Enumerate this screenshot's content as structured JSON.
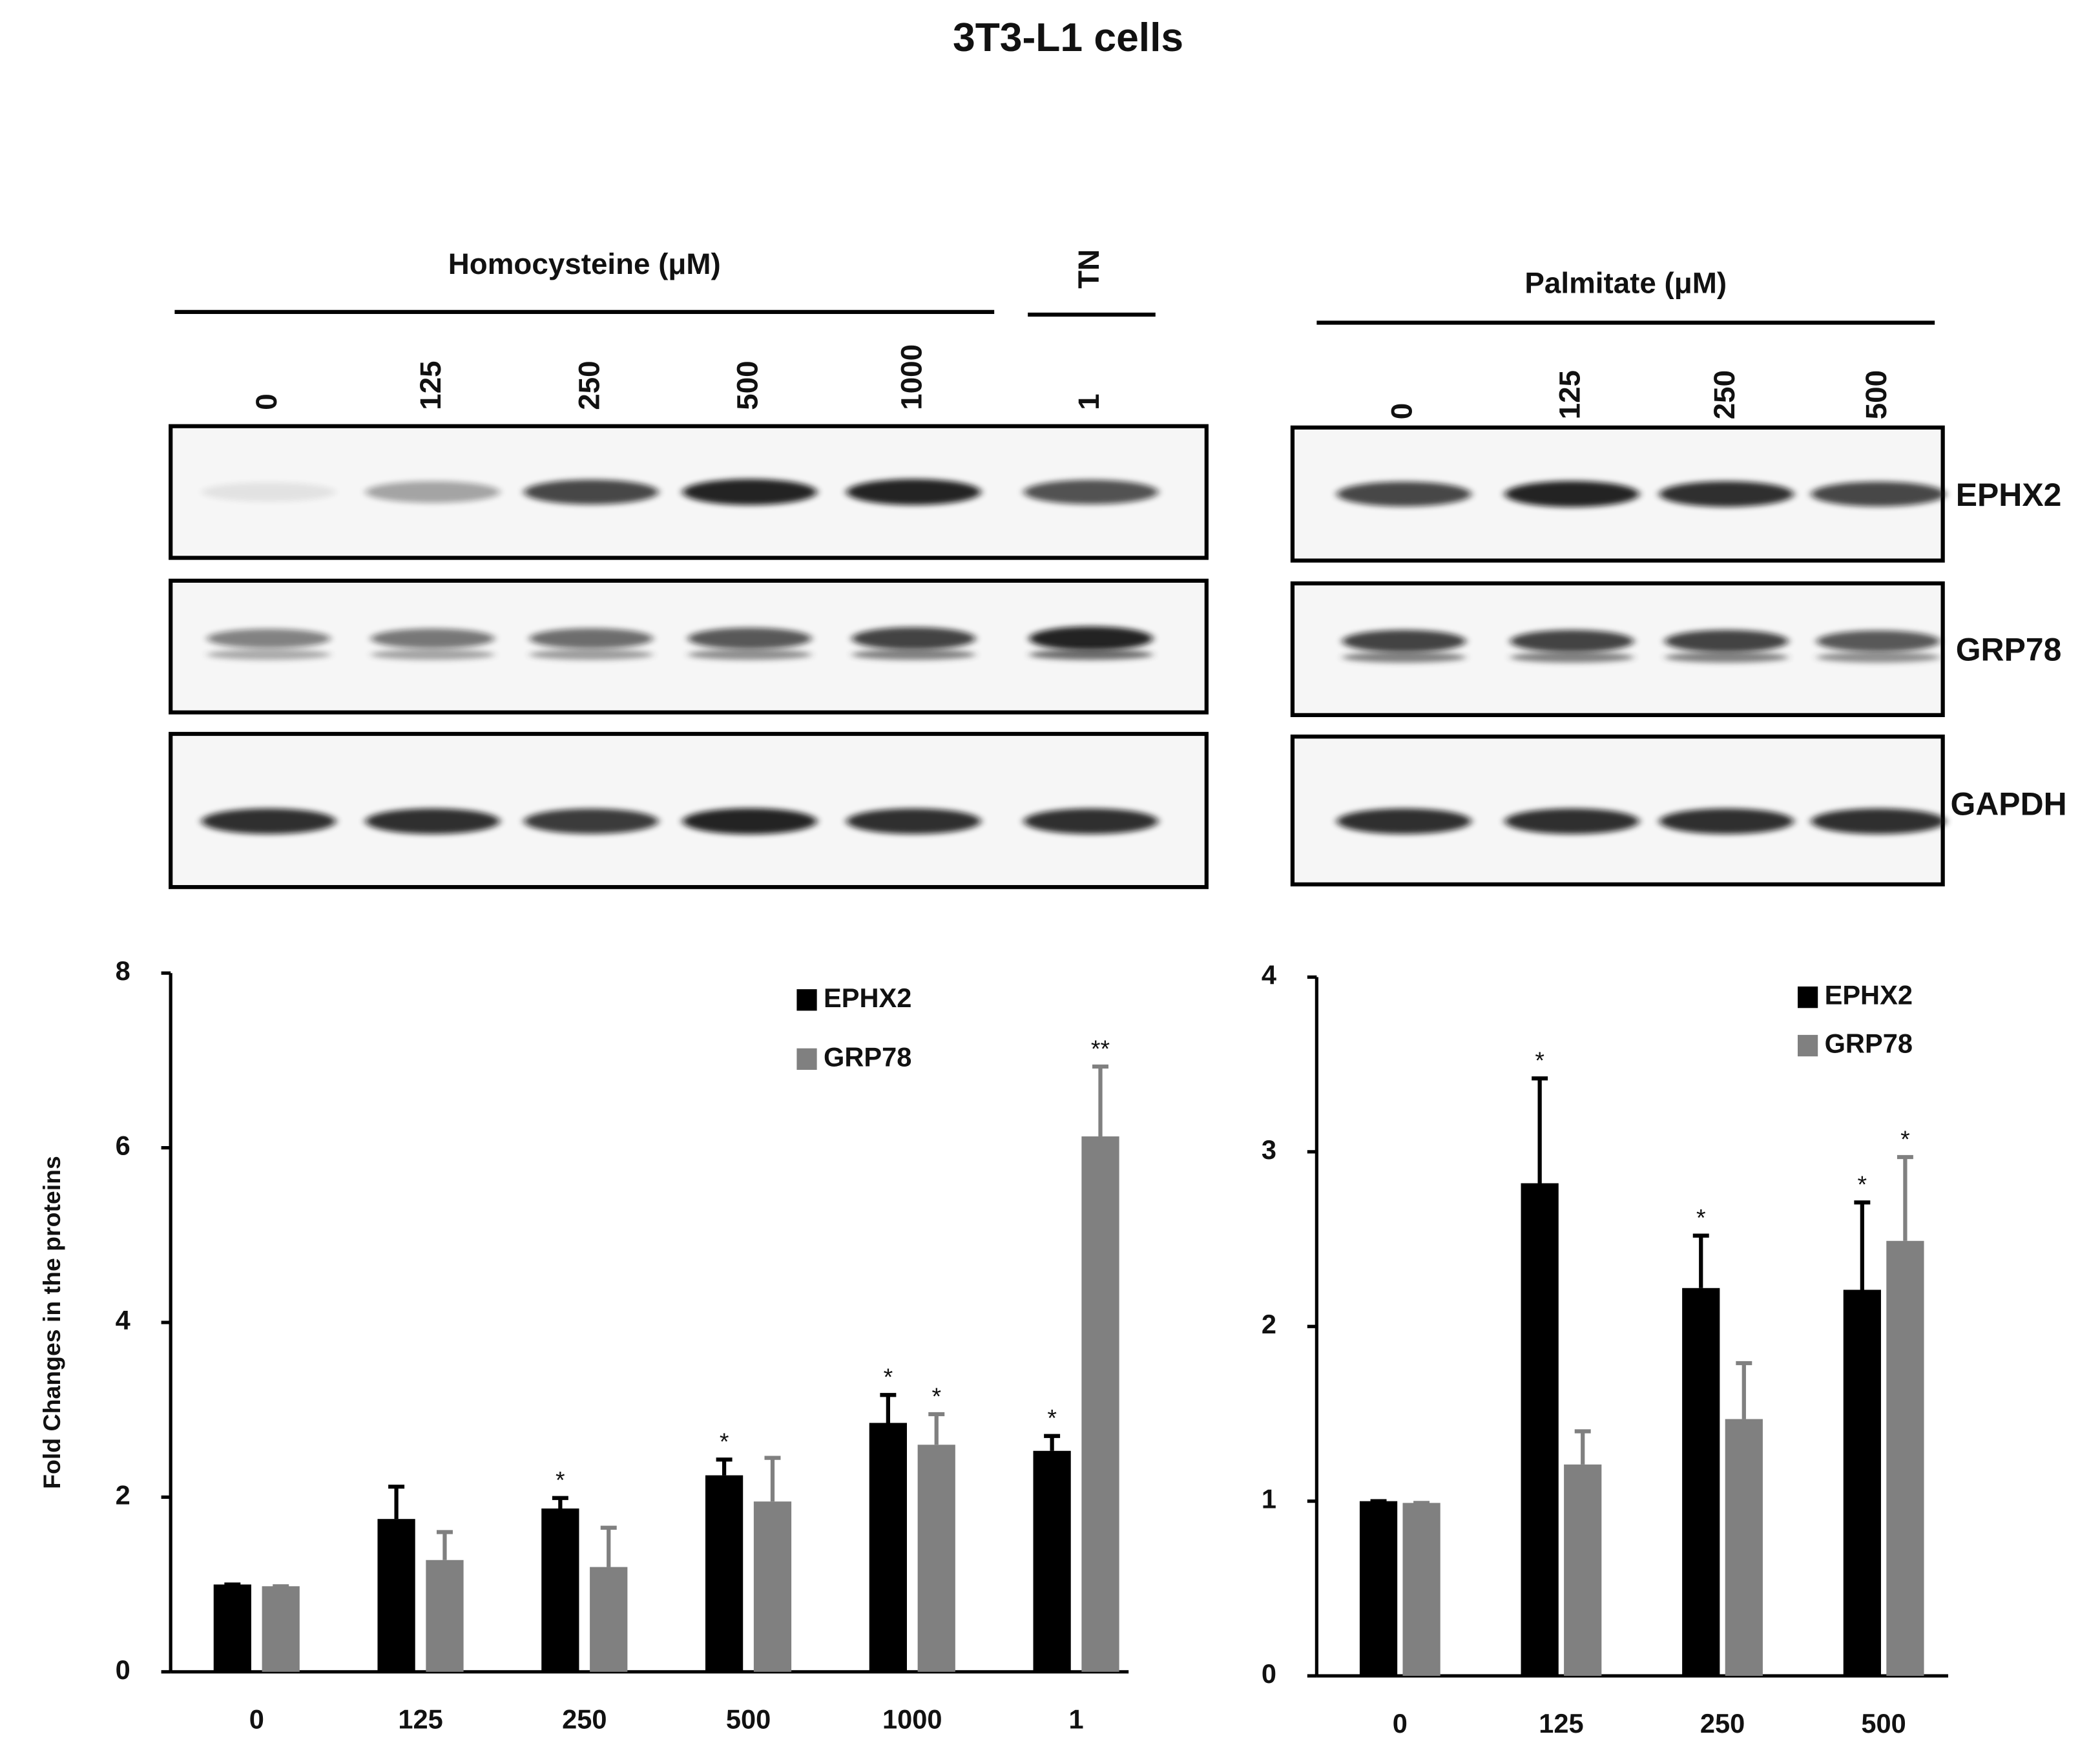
{
  "title": "3T3-L1 cells",
  "blots": [
    {
      "treatment": "Homocysteine (μM)",
      "control": "TN",
      "lanes": [
        "0",
        "125",
        "250",
        "500",
        "1000",
        "1"
      ]
    },
    {
      "treatment": "Palmitate (μM)",
      "lanes": [
        "0",
        "125",
        "250",
        "500"
      ]
    }
  ],
  "proteins": [
    "EPHX2",
    "GRP78",
    "GAPDH"
  ],
  "chart_data": [
    {
      "type": "bar",
      "y_label": "Fold Changes in the proteins",
      "categories": [
        "0",
        "125",
        "250",
        "500",
        "1000",
        "1"
      ],
      "ylim": [
        0,
        8
      ],
      "yticks": [
        0,
        2,
        4,
        6,
        8
      ],
      "legend": "top-right",
      "series": [
        {
          "name": "EPHX2",
          "color": "#000000",
          "values": [
            1,
            1.75,
            1.87,
            2.25,
            2.85,
            2.53
          ],
          "errors": [
            0,
            0.37,
            0.12,
            0.18,
            0.32,
            0.17
          ],
          "annotations": [
            null,
            null,
            "*",
            "*",
            "*",
            "*"
          ]
        },
        {
          "name": "GRP78",
          "color": "#808080",
          "values": [
            0.98,
            1.28,
            1.2,
            1.95,
            2.6,
            6.13
          ],
          "errors": [
            0,
            0.32,
            0.45,
            0.5,
            0.35,
            0.8
          ],
          "annotations": [
            null,
            null,
            null,
            null,
            "*",
            "**"
          ]
        }
      ]
    },
    {
      "type": "bar",
      "categories": [
        "0",
        "125",
        "250",
        "500"
      ],
      "ylim": [
        0,
        4
      ],
      "yticks": [
        0,
        1,
        2,
        3,
        4
      ],
      "legend": "top-right",
      "series": [
        {
          "name": "EPHX2",
          "color": "#000000",
          "values": [
            1,
            2.82,
            2.22,
            2.21
          ],
          "errors": [
            0,
            0.6,
            0.3,
            0.5
          ],
          "annotations": [
            null,
            "*",
            "*",
            "*"
          ]
        },
        {
          "name": "GRP78",
          "color": "#808080",
          "values": [
            0.99,
            1.21,
            1.47,
            2.49
          ],
          "errors": [
            0,
            0.19,
            0.32,
            0.48
          ],
          "annotations": [
            null,
            null,
            null,
            "*"
          ]
        }
      ]
    }
  ]
}
